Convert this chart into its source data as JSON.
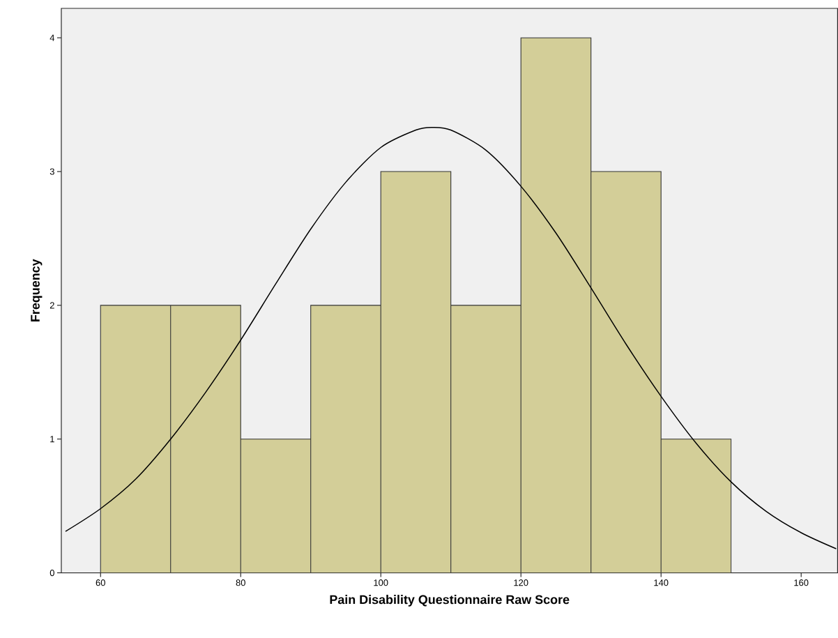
{
  "chart_data": {
    "type": "histogram",
    "xlabel": "Pain Disability Questionnaire Raw Score",
    "ylabel": "Frequency",
    "bins": [
      60,
      70,
      80,
      90,
      100,
      110,
      120,
      130,
      140,
      150
    ],
    "values": [
      2,
      2,
      1,
      2,
      3,
      2,
      4,
      3,
      1
    ],
    "color": "#d3ce98",
    "series": [
      {
        "type": "line",
        "color": "#000000",
        "x": [
          55,
          60,
          65,
          70,
          75,
          80,
          85,
          90,
          95,
          100,
          105,
          107.3,
          110,
          115,
          120,
          125,
          130,
          135,
          140,
          145,
          150,
          155,
          160,
          165
        ],
        "values": [
          0.31,
          0.48,
          0.7,
          1.0,
          1.35,
          1.74,
          2.16,
          2.57,
          2.92,
          3.18,
          3.31,
          3.33,
          3.31,
          3.16,
          2.89,
          2.54,
          2.13,
          1.71,
          1.32,
          0.97,
          0.68,
          0.46,
          0.3,
          0.18
        ]
      }
    ],
    "xlim": [
      54.4,
      165.2
    ],
    "ylim": [
      0,
      4.22
    ],
    "xticks": [
      60,
      80,
      100,
      120,
      140,
      160
    ],
    "yticks": [
      0,
      1,
      2,
      3,
      4
    ],
    "grid": false
  }
}
